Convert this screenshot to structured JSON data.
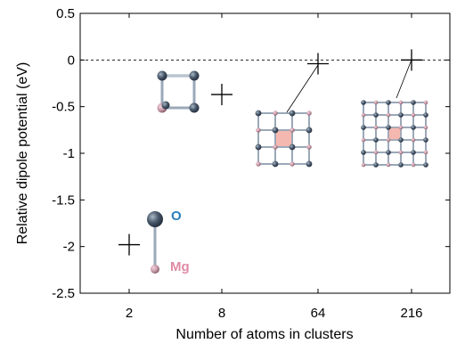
{
  "chart_data": {
    "type": "scatter",
    "title": "",
    "xlabel": "Number of atoms in clusters",
    "ylabel": "Relative dipole potential (eV)",
    "x_categories": [
      "2",
      "8",
      "64",
      "216"
    ],
    "ylim": [
      -2.5,
      0.5
    ],
    "yticks": [
      "0.5",
      "0",
      "-0.5",
      "-1",
      "-1.5",
      "-2",
      "-2.5"
    ],
    "marker": "plus",
    "points": [
      {
        "x": "2",
        "y": -1.98
      },
      {
        "x": "8",
        "y": -0.37
      },
      {
        "x": "64",
        "y": -0.04
      },
      {
        "x": "216",
        "y": 0.0
      }
    ],
    "reference_line": {
      "y": 0,
      "style": "dashed"
    },
    "grid": false,
    "legend": "none",
    "annotations": {
      "oxygen_label": "O",
      "magnesium_label": "Mg"
    },
    "colors": {
      "oxygen_atom": "#4a5a6c",
      "oxygen_label": "#2a7fc0",
      "magnesium_atom": "#c89aa8",
      "magnesium_label": "#e08aa5",
      "bond": "#9aa8b8",
      "highlight": "#f4b0a8"
    }
  }
}
